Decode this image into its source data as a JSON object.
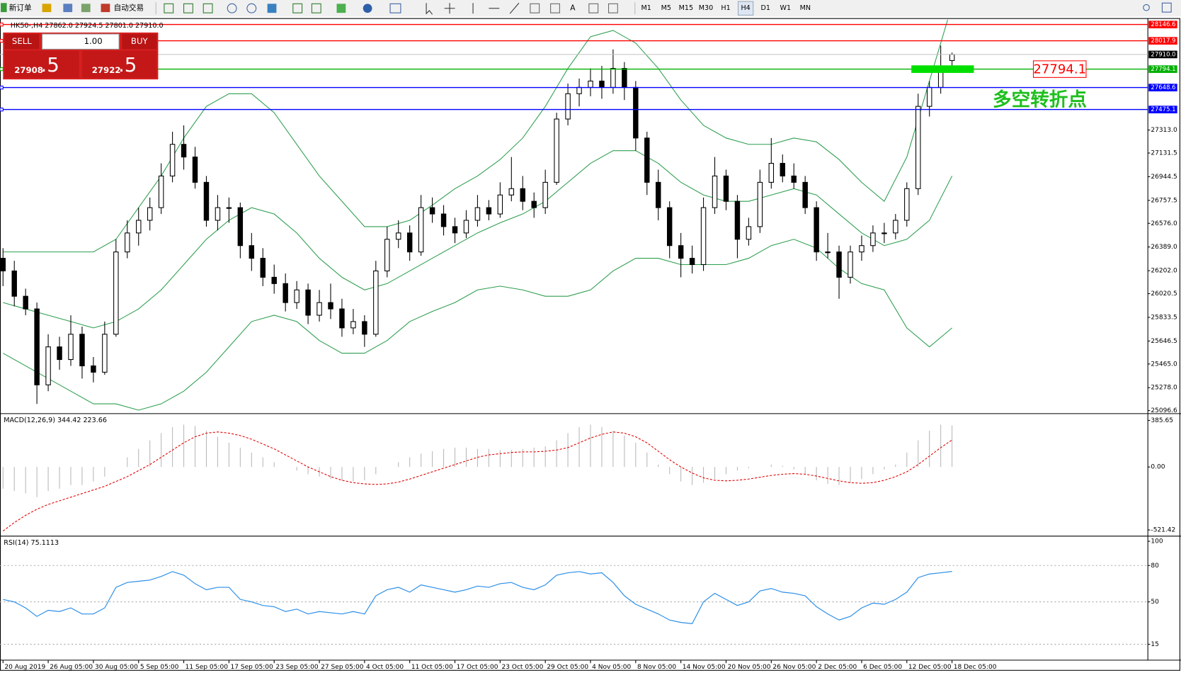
{
  "toolbar": {
    "buttons": [
      "新订单",
      "自动交易"
    ],
    "timeframes": [
      "M1",
      "M5",
      "M15",
      "M30",
      "H1",
      "H4",
      "D1",
      "W1",
      "MN"
    ]
  },
  "one_click": {
    "sell": "SELL",
    "buy": "BUY",
    "lot": "1.00",
    "bid": "27908",
    "bid_pips": ".5",
    "ask": "27922",
    "ask_pips": ".5"
  },
  "chart_data": [
    {
      "type": "candlestick",
      "title": "HK50-,H4  27862.0 27924.5 27801.0 27910.0",
      "ylim": [
        25078.7,
        28185
      ],
      "yticks": [
        {
          "value": 27313,
          "label": "27313.0"
        },
        27131.5,
        26944.5,
        26757.5,
        {
          "value": 26576,
          "label": "26576.0"
        },
        {
          "value": 26389,
          "label": "26389.0"
        },
        {
          "value": 26202,
          "label": "26202.0"
        },
        26020.5,
        25833.5,
        25646.5,
        {
          "value": 25465,
          "label": "25465.0"
        },
        {
          "value": 25278,
          "label": "25278.0"
        },
        25096.6
      ],
      "xticks": [
        {
          "value": 0,
          "label": "20 Aug 2019"
        },
        {
          "value": 4,
          "label": "26 Aug 05:00"
        },
        {
          "value": 8,
          "label": "30 Aug 05:00"
        },
        {
          "value": 12,
          "label": "5 Sep 05:00"
        },
        {
          "value": 16,
          "label": "11 Sep 05:00"
        },
        {
          "value": 20,
          "label": "17 Sep 05:00"
        },
        {
          "value": 24,
          "label": "23 Sep 05:00"
        },
        {
          "value": 28,
          "label": "27 Sep 05:00"
        },
        {
          "value": 32,
          "label": "4 Oct 05:00"
        },
        {
          "value": 36,
          "label": "11 Oct 05:00"
        },
        {
          "value": 40,
          "label": "17 Oct 05:00"
        },
        {
          "value": 44,
          "label": "23 Oct 05:00"
        },
        {
          "value": 48,
          "label": "29 Oct 05:00"
        },
        {
          "value": 52,
          "label": "4 Nov 05:00"
        },
        {
          "value": 56,
          "label": "8 Nov 05:00"
        },
        {
          "value": 60,
          "label": "14 Nov 05:00"
        },
        {
          "value": 64,
          "label": "20 Nov 05:00"
        },
        {
          "value": 68,
          "label": "26 Nov 05:00"
        },
        {
          "value": 72,
          "label": "2 Dec 05:00"
        },
        {
          "value": 76,
          "label": "6 Dec 05:00"
        },
        {
          "value": 80,
          "label": "12 Dec 05:00"
        },
        {
          "value": 84,
          "label": "18 Dec 05:00"
        }
      ],
      "candles": [
        [
          26300,
          26380,
          26080,
          26200
        ],
        [
          26200,
          26280,
          25920,
          26000
        ],
        [
          26000,
          26060,
          25850,
          25900
        ],
        [
          25900,
          25950,
          25150,
          25300
        ],
        [
          25300,
          25700,
          25250,
          25600
        ],
        [
          25600,
          25680,
          25420,
          25500
        ],
        [
          25500,
          25850,
          25450,
          25700
        ],
        [
          25700,
          25760,
          25350,
          25450
        ],
        [
          25450,
          25520,
          25320,
          25400
        ],
        [
          25400,
          25800,
          25380,
          25700
        ],
        [
          25700,
          26450,
          25680,
          26350
        ],
        [
          26350,
          26600,
          26300,
          26500
        ],
        [
          26500,
          26700,
          26400,
          26600
        ],
        [
          26600,
          26780,
          26520,
          26700
        ],
        [
          26700,
          27050,
          26650,
          26950
        ],
        [
          26950,
          27300,
          26900,
          27200
        ],
        [
          27200,
          27350,
          27000,
          27100
        ],
        [
          27100,
          27180,
          26850,
          26900
        ],
        [
          26900,
          26950,
          26550,
          26600
        ],
        [
          26600,
          26800,
          26520,
          26700
        ],
        [
          26700,
          26780,
          26580,
          26700
        ],
        [
          26700,
          26740,
          26300,
          26400
        ],
        [
          26400,
          26500,
          26200,
          26300
        ],
        [
          26300,
          26380,
          26080,
          26150
        ],
        [
          26150,
          26250,
          26020,
          26100
        ],
        [
          26100,
          26180,
          25880,
          25950
        ],
        [
          25950,
          26120,
          25900,
          26050
        ],
        [
          26050,
          26100,
          25780,
          25850
        ],
        [
          25850,
          26050,
          25800,
          25950
        ],
        [
          25950,
          26100,
          25820,
          25900
        ],
        [
          25900,
          25980,
          25680,
          25750
        ],
        [
          25750,
          25900,
          25700,
          25800
        ],
        [
          25800,
          25850,
          25600,
          25700
        ],
        [
          25700,
          26280,
          25680,
          26200
        ],
        [
          26200,
          26550,
          26150,
          26450
        ],
        [
          26450,
          26600,
          26380,
          26500
        ],
        [
          26500,
          26560,
          26280,
          26350
        ],
        [
          26350,
          26800,
          26320,
          26700
        ],
        [
          26700,
          26780,
          26580,
          26650
        ],
        [
          26650,
          26720,
          26480,
          26550
        ],
        [
          26550,
          26620,
          26420,
          26500
        ],
        [
          26500,
          26680,
          26460,
          26600
        ],
        [
          26600,
          26800,
          26550,
          26700
        ],
        [
          26700,
          26760,
          26600,
          26650
        ],
        [
          26650,
          26900,
          26620,
          26800
        ],
        [
          26800,
          27100,
          26750,
          26850
        ],
        [
          26850,
          26950,
          26680,
          26750
        ],
        [
          26750,
          26820,
          26620,
          26700
        ],
        [
          26700,
          27000,
          26650,
          26900
        ],
        [
          26900,
          27450,
          26880,
          27400
        ],
        [
          27400,
          27680,
          27350,
          27600
        ],
        [
          27600,
          27720,
          27500,
          27650
        ],
        [
          27650,
          27800,
          27580,
          27700
        ],
        [
          27700,
          27820,
          27560,
          27650
        ],
        [
          27650,
          27950,
          27600,
          27800
        ],
        [
          27800,
          27850,
          27550,
          27650
        ],
        [
          27650,
          27700,
          27150,
          27250
        ],
        [
          27250,
          27300,
          26800,
          26900
        ],
        [
          26900,
          27000,
          26600,
          26700
        ],
        [
          26700,
          26750,
          26300,
          26400
        ],
        [
          26400,
          26500,
          26150,
          26300
        ],
        [
          26300,
          26400,
          26180,
          26250
        ],
        [
          26250,
          26780,
          26200,
          26700
        ],
        [
          26700,
          27100,
          26650,
          26950
        ],
        [
          26950,
          27000,
          26680,
          26750
        ],
        [
          26750,
          26800,
          26300,
          26450
        ],
        [
          26450,
          26620,
          26400,
          26550
        ],
        [
          26550,
          27000,
          26500,
          26900
        ],
        [
          26900,
          27250,
          26850,
          27050
        ],
        [
          27050,
          27120,
          26900,
          26950
        ],
        [
          26950,
          27050,
          26850,
          26900
        ],
        [
          26900,
          26950,
          26650,
          26700
        ],
        [
          26700,
          26750,
          26280,
          26350
        ],
        [
          26350,
          26500,
          26300,
          26350
        ],
        [
          26350,
          26400,
          25980,
          26150
        ],
        [
          26150,
          26400,
          26100,
          26350
        ],
        [
          26350,
          26480,
          26280,
          26400
        ],
        [
          26400,
          26560,
          26350,
          26500
        ],
        [
          26500,
          26580,
          26420,
          26500
        ],
        [
          26500,
          26650,
          26450,
          26600
        ],
        [
          26600,
          26900,
          26550,
          26850
        ],
        [
          26850,
          27600,
          26800,
          27500
        ],
        [
          27500,
          27700,
          27420,
          27650
        ],
        [
          27650,
          27980,
          27600,
          27800
        ],
        [
          27862.0,
          27924.5,
          27801.0,
          27910.0
        ]
      ],
      "bollinger": {
        "color": "#2e9e4f",
        "x": [
          0,
          2,
          4,
          6,
          8,
          10,
          12,
          14,
          16,
          18,
          20,
          22,
          24,
          26,
          28,
          30,
          32,
          34,
          36,
          38,
          40,
          42,
          44,
          46,
          48,
          50,
          52,
          54,
          56,
          58,
          60,
          62,
          64,
          66,
          68,
          70,
          72,
          74,
          76,
          78,
          80,
          82,
          84
        ],
        "upper": [
          26350,
          26350,
          26350,
          26350,
          26350,
          26450,
          26700,
          26950,
          27250,
          27500,
          27600,
          27600,
          27450,
          27200,
          26950,
          26750,
          26550,
          26550,
          26600,
          26720,
          26850,
          26950,
          27080,
          27250,
          27500,
          27800,
          28050,
          28100,
          28000,
          27800,
          27550,
          27350,
          27250,
          27200,
          27200,
          27250,
          27220,
          27080,
          26900,
          26750,
          27100,
          27700,
          28300
        ],
        "middle": [
          25950,
          25900,
          25850,
          25800,
          25750,
          25800,
          25900,
          26050,
          26250,
          26450,
          26600,
          26700,
          26650,
          26500,
          26300,
          26150,
          26050,
          26100,
          26200,
          26300,
          26400,
          26500,
          26580,
          26650,
          26750,
          26900,
          27050,
          27150,
          27150,
          27050,
          26900,
          26800,
          26750,
          26750,
          26800,
          26850,
          26800,
          26650,
          26500,
          26400,
          26450,
          26600,
          26950
        ],
        "lower": [
          25550,
          25450,
          25350,
          25250,
          25150,
          25150,
          25100,
          25150,
          25250,
          25400,
          25600,
          25800,
          25850,
          25800,
          25650,
          25550,
          25550,
          25650,
          25800,
          25880,
          25950,
          26050,
          26080,
          26050,
          26000,
          26000,
          26050,
          26200,
          26300,
          26300,
          26250,
          26250,
          26250,
          26300,
          26400,
          26450,
          26380,
          26220,
          26100,
          26050,
          25750,
          25600,
          25750
        ]
      },
      "price_lines": [
        {
          "value": 28146.6,
          "color": "#ff0000"
        },
        {
          "value": 28017.9,
          "color": "#ff0000"
        },
        {
          "value": 27794.1,
          "color": "#00b000"
        },
        {
          "value": 27648.6,
          "color": "#0000ff"
        },
        {
          "value": 27475.1,
          "color": "#0000ff"
        }
      ],
      "current_price": {
        "value": 27910,
        "label": "27910.0"
      },
      "annotations": [
        {
          "text": "27794.1",
          "value": 27794.1
        },
        {
          "text": "多空转折点"
        }
      ]
    },
    {
      "type": "macd",
      "title": "MACD(12,26,9) 344.42 223.66",
      "ylim": [
        -560,
        429
      ],
      "yticks": [
        385.65,
        {
          "value": 0,
          "label": "0.00"
        },
        -521.42
      ],
      "histogram": [
        -180,
        -200,
        -220,
        -250,
        -200,
        -180,
        -150,
        -150,
        -120,
        -80,
        0,
        80,
        150,
        220,
        280,
        330,
        350,
        340,
        300,
        250,
        200,
        160,
        120,
        80,
        40,
        0,
        -30,
        -60,
        -80,
        -100,
        -110,
        -120,
        -110,
        -60,
        0,
        40,
        80,
        110,
        130,
        150,
        160,
        160,
        150,
        150,
        140,
        140,
        150,
        160,
        170,
        220,
        280,
        330,
        350,
        330,
        300,
        260,
        200,
        120,
        20,
        -60,
        -120,
        -150,
        -130,
        -100,
        -60,
        -30,
        -10,
        0,
        20,
        10,
        -20,
        -60,
        -110,
        -140,
        -150,
        -130,
        -100,
        -60,
        -20,
        20,
        120,
        220,
        300,
        350,
        344.42
      ],
      "signal": [
        -530,
        -460,
        -400,
        -350,
        -310,
        -280,
        -250,
        -220,
        -190,
        -160,
        -120,
        -80,
        -30,
        20,
        80,
        140,
        200,
        250,
        280,
        290,
        280,
        260,
        230,
        190,
        150,
        100,
        50,
        0,
        -40,
        -80,
        -110,
        -130,
        -140,
        -145,
        -140,
        -125,
        -100,
        -70,
        -40,
        -10,
        20,
        50,
        80,
        100,
        110,
        120,
        125,
        125,
        130,
        140,
        160,
        200,
        240,
        270,
        290,
        280,
        250,
        200,
        130,
        60,
        0,
        -50,
        -90,
        -110,
        -115,
        -110,
        -100,
        -85,
        -70,
        -60,
        -55,
        -60,
        -75,
        -95,
        -115,
        -130,
        -135,
        -130,
        -110,
        -80,
        -40,
        20,
        90,
        160,
        223.66
      ],
      "hist_color": "#b8b8b8",
      "signal_color": "#e00000"
    },
    {
      "type": "rsi",
      "title": "RSI(14) 75.1113",
      "ylim": [
        2.5,
        103
      ],
      "yticks": [
        100,
        80,
        50,
        15
      ],
      "levels": [
        80,
        50,
        15
      ],
      "color": "#2b8ee8",
      "values": [
        52,
        50,
        45,
        38,
        43,
        42,
        45,
        40,
        40,
        45,
        62,
        66,
        67,
        68,
        71,
        75,
        72,
        65,
        60,
        62,
        62,
        52,
        50,
        47,
        46,
        42,
        44,
        40,
        42,
        41,
        40,
        42,
        40,
        55,
        60,
        62,
        58,
        64,
        62,
        60,
        58,
        60,
        63,
        62,
        65,
        66,
        62,
        60,
        64,
        72,
        74,
        75,
        73,
        74,
        66,
        55,
        48,
        44,
        40,
        35,
        33,
        32,
        50,
        57,
        52,
        47,
        50,
        59,
        61,
        58,
        57,
        55,
        46,
        40,
        35,
        38,
        45,
        49,
        48,
        52,
        58,
        70,
        73,
        74,
        75.1113
      ]
    }
  ]
}
